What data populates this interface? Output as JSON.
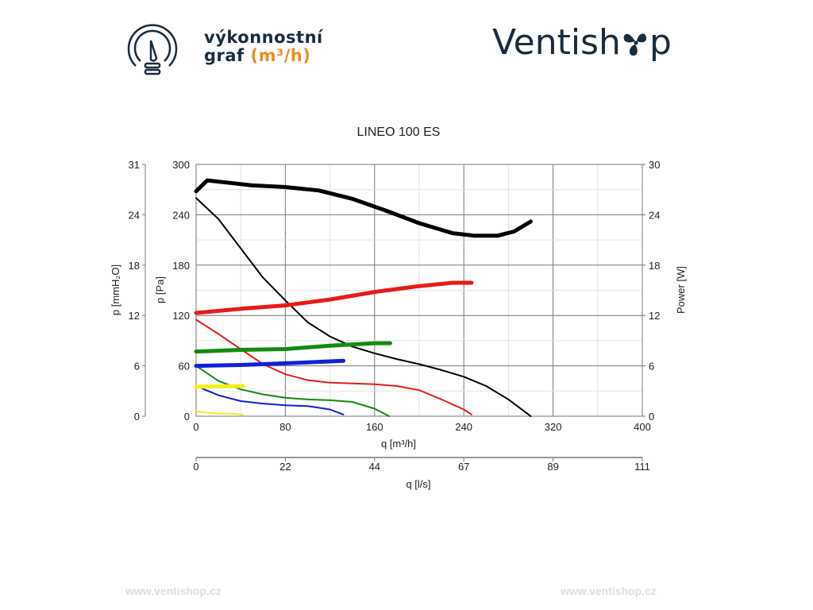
{
  "header": {
    "line1": "výkonnostní",
    "line2": "graf",
    "unit": "(m³/h)",
    "icon": "speedometer-icon"
  },
  "logo": {
    "text_before": "Ventish",
    "text_after": "p",
    "icon": "fan-icon"
  },
  "footer": {
    "left": "www.ventishop.cz",
    "right": "www.ventishop.cz"
  },
  "chart_data": {
    "type": "line",
    "title": "LINEO 100 ES",
    "xlabel": "q [m³/h]",
    "xlim": [
      0,
      400
    ],
    "xticks": [
      0,
      80,
      160,
      240,
      320,
      400
    ],
    "x2label": "q [l/s]",
    "x2ticks": [
      "0",
      "22",
      "44",
      "67",
      "89",
      "111"
    ],
    "ylabel": "p [Pa]",
    "ylim": [
      0,
      300
    ],
    "yticks": [
      0,
      60,
      120,
      180,
      240,
      300
    ],
    "y_left2label": "p [mmH₂O]",
    "y_left2ticks": [
      "0",
      "6",
      "12",
      "18",
      "24",
      "31"
    ],
    "y2label": "Power [W]",
    "y2lim": [
      0,
      30
    ],
    "y2ticks": [
      "0",
      "6",
      "12",
      "18",
      "24",
      "30"
    ],
    "grid": true,
    "series": [
      {
        "name": "pressure-black",
        "axis": "Pa",
        "color": "#000000",
        "width": 2,
        "points": [
          [
            0,
            260
          ],
          [
            20,
            235
          ],
          [
            40,
            200
          ],
          [
            60,
            165
          ],
          [
            80,
            138
          ],
          [
            100,
            112
          ],
          [
            120,
            95
          ],
          [
            140,
            83
          ],
          [
            160,
            75
          ],
          [
            180,
            68
          ],
          [
            200,
            62
          ],
          [
            220,
            55
          ],
          [
            240,
            47
          ],
          [
            260,
            36
          ],
          [
            280,
            20
          ],
          [
            300,
            0
          ]
        ]
      },
      {
        "name": "pressure-red",
        "axis": "Pa",
        "color": "#e81a1a",
        "width": 2,
        "points": [
          [
            0,
            115
          ],
          [
            20,
            98
          ],
          [
            40,
            80
          ],
          [
            60,
            62
          ],
          [
            80,
            50
          ],
          [
            100,
            43
          ],
          [
            120,
            40
          ],
          [
            140,
            39
          ],
          [
            160,
            38
          ],
          [
            180,
            36
          ],
          [
            200,
            31
          ],
          [
            220,
            20
          ],
          [
            240,
            8
          ],
          [
            247,
            2
          ]
        ]
      },
      {
        "name": "pressure-green",
        "axis": "Pa",
        "color": "#138a13",
        "width": 2,
        "points": [
          [
            0,
            60
          ],
          [
            20,
            42
          ],
          [
            40,
            32
          ],
          [
            60,
            26
          ],
          [
            80,
            22
          ],
          [
            100,
            20
          ],
          [
            120,
            19
          ],
          [
            140,
            17
          ],
          [
            160,
            9
          ],
          [
            173,
            0
          ]
        ]
      },
      {
        "name": "pressure-blue",
        "axis": "Pa",
        "color": "#1020d8",
        "width": 2,
        "points": [
          [
            0,
            36
          ],
          [
            20,
            25
          ],
          [
            40,
            18
          ],
          [
            60,
            15
          ],
          [
            80,
            13
          ],
          [
            100,
            12
          ],
          [
            120,
            8
          ],
          [
            132,
            2
          ]
        ]
      },
      {
        "name": "pressure-yellow",
        "axis": "Pa",
        "color": "#f2ee1a",
        "width": 2,
        "points": [
          [
            0,
            6
          ],
          [
            10,
            4
          ],
          [
            20,
            3
          ],
          [
            30,
            3
          ],
          [
            42,
            2
          ]
        ]
      },
      {
        "name": "power-black",
        "axis": "W",
        "color": "#000000",
        "width": 5,
        "points": [
          [
            0,
            26.8
          ],
          [
            10,
            28.1
          ],
          [
            30,
            27.8
          ],
          [
            50,
            27.5
          ],
          [
            80,
            27.3
          ],
          [
            110,
            26.9
          ],
          [
            140,
            25.9
          ],
          [
            170,
            24.5
          ],
          [
            200,
            23
          ],
          [
            230,
            21.8
          ],
          [
            250,
            21.5
          ],
          [
            270,
            21.5
          ],
          [
            285,
            22
          ],
          [
            300,
            23.2
          ]
        ]
      },
      {
        "name": "power-red",
        "axis": "W",
        "color": "#e81a1a",
        "width": 5,
        "points": [
          [
            0,
            12.3
          ],
          [
            40,
            12.8
          ],
          [
            80,
            13.2
          ],
          [
            120,
            13.9
          ],
          [
            160,
            14.8
          ],
          [
            200,
            15.5
          ],
          [
            230,
            15.9
          ],
          [
            247,
            15.9
          ]
        ]
      },
      {
        "name": "power-green",
        "axis": "W",
        "color": "#138a13",
        "width": 5,
        "points": [
          [
            0,
            7.7
          ],
          [
            40,
            7.9
          ],
          [
            80,
            8
          ],
          [
            120,
            8.4
          ],
          [
            160,
            8.7
          ],
          [
            174,
            8.7
          ]
        ]
      },
      {
        "name": "power-blue",
        "axis": "W",
        "color": "#1020d8",
        "width": 5,
        "points": [
          [
            0,
            6
          ],
          [
            40,
            6.1
          ],
          [
            80,
            6.3
          ],
          [
            132,
            6.6
          ]
        ]
      },
      {
        "name": "power-yellow",
        "axis": "W",
        "color": "#f2ee1a",
        "width": 5,
        "points": [
          [
            0,
            3.5
          ],
          [
            42,
            3.6
          ]
        ]
      }
    ]
  }
}
